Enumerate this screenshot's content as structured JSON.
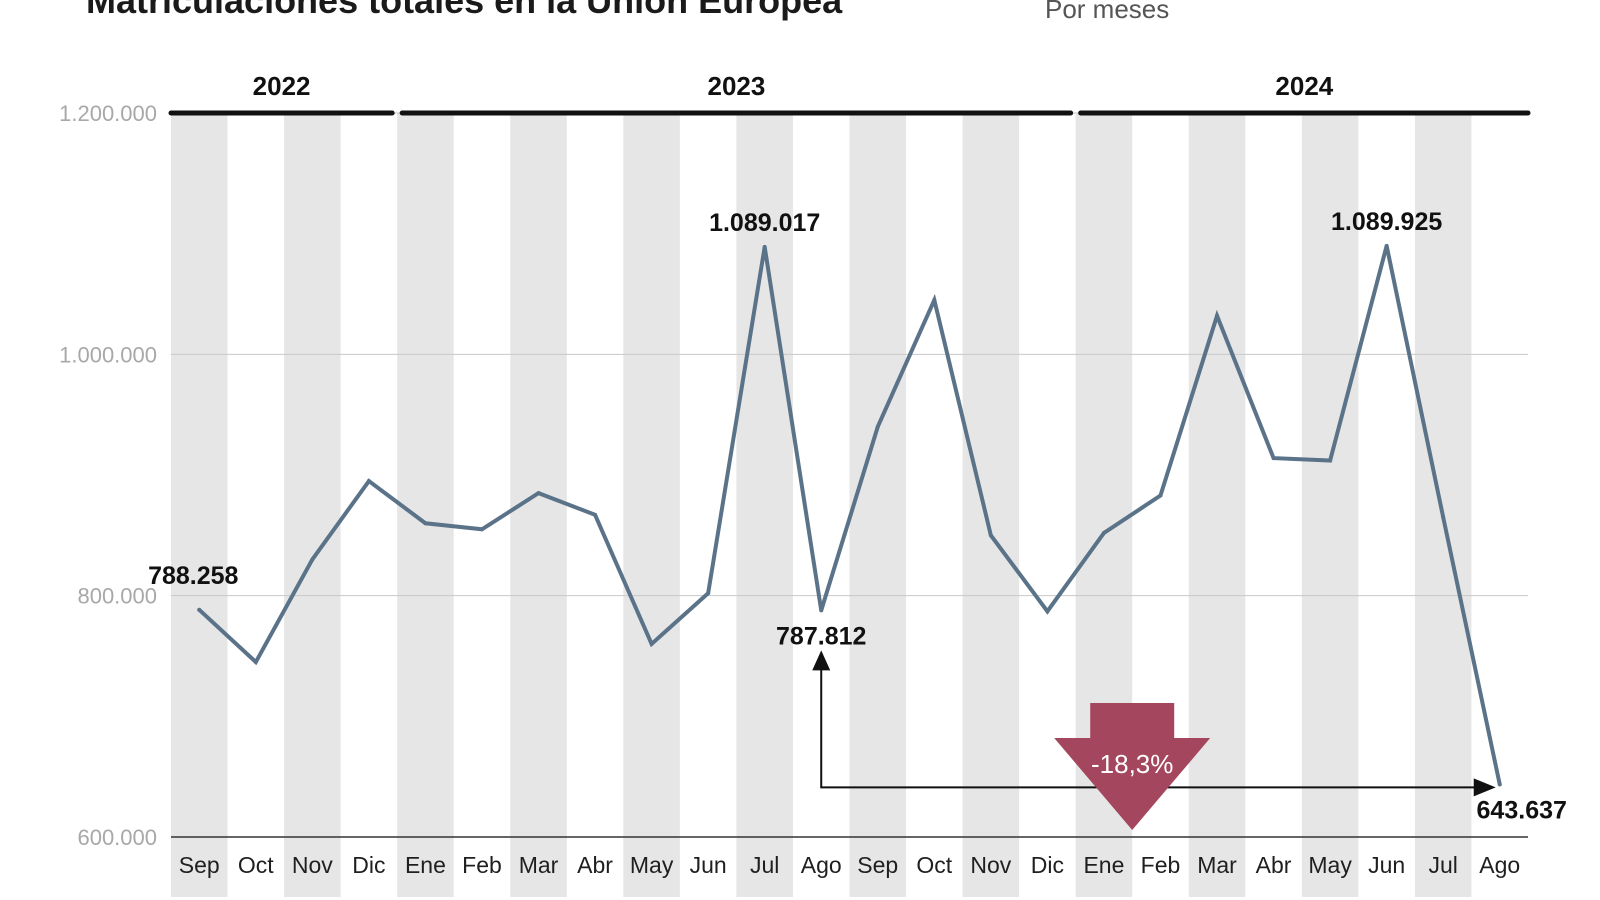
{
  "title": "Matriculaciones totales en la Unión Europea",
  "subtitle": "Por meses",
  "chart_data": {
    "type": "line",
    "title": "Matriculaciones totales en la Unión Europea",
    "subtitle": "Por meses",
    "xlabel": "",
    "ylabel": "",
    "ylim": [
      600000,
      1200000
    ],
    "y_ticks": [
      600000,
      800000,
      1000000,
      1200000
    ],
    "y_tick_labels": [
      "600.000",
      "800.000",
      "1.000.000",
      "1.200.000"
    ],
    "grid": true,
    "categories": [
      "Sep",
      "Oct",
      "Nov",
      "Dic",
      "Ene",
      "Feb",
      "Mar",
      "Abr",
      "May",
      "Jun",
      "Jul",
      "Ago",
      "Sep",
      "Oct",
      "Nov",
      "Dic",
      "Ene",
      "Feb",
      "Mar",
      "Abr",
      "May",
      "Jun",
      "Jul",
      "Ago"
    ],
    "year_groups": [
      {
        "label": "2022",
        "start": 0,
        "end": 3
      },
      {
        "label": "2023",
        "start": 4,
        "end": 15
      },
      {
        "label": "2024",
        "start": 16,
        "end": 23
      }
    ],
    "series": [
      {
        "color": "#5b7389",
        "values": [
          788258,
          745000,
          830000,
          895000,
          860000,
          855000,
          885000,
          867000,
          760000,
          802000,
          1089017,
          787812,
          940000,
          1045000,
          850000,
          787000,
          852000,
          883000,
          1032000,
          914000,
          912000,
          1089925,
          865000,
          643637
        ]
      }
    ],
    "data_labels": [
      {
        "index": 0,
        "text": "788.258",
        "position": "above-left"
      },
      {
        "index": 10,
        "text": "1.089.017",
        "position": "above"
      },
      {
        "index": 11,
        "text": "787.812",
        "position": "below"
      },
      {
        "index": 21,
        "text": "1.089.925",
        "position": "above"
      },
      {
        "index": 23,
        "text": "643.637",
        "position": "below"
      }
    ],
    "annotation": {
      "text": "-18,3%",
      "from_index": 11,
      "to_index": 23,
      "color": "#a4475e"
    }
  },
  "colors": {
    "line": "#5b7389",
    "band": "#e6e6e6",
    "arrow": "#a4475e",
    "gridline": "#c8c8c8"
  }
}
